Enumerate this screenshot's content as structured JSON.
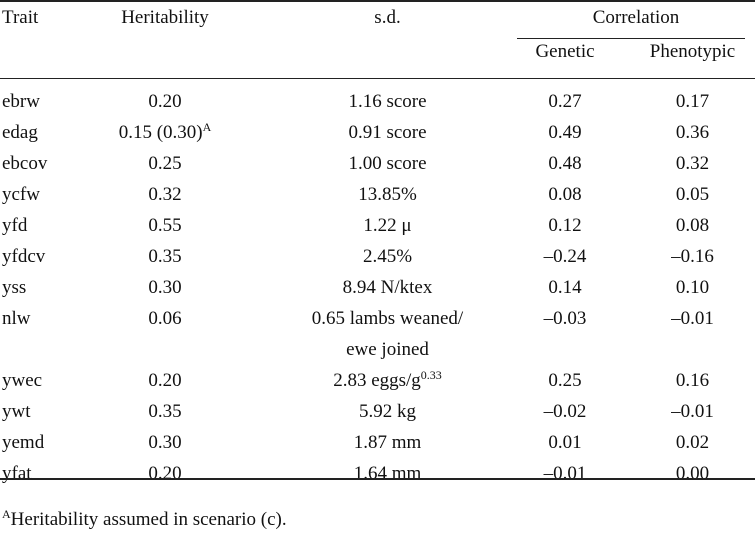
{
  "headers": {
    "trait": "Trait",
    "heritability": "Heritability",
    "sd": "s.d.",
    "correlation": "Correlation",
    "genetic": "Genetic",
    "phenotypic": "Phenotypic"
  },
  "rows": [
    {
      "trait": "ebrw",
      "her": "0.20",
      "her_sup": "",
      "sd": "1.16 score",
      "sd_sup": "",
      "sd2": "",
      "gen": "0.27",
      "phen": "0.17"
    },
    {
      "trait": "edag",
      "her": "0.15 (0.30)",
      "her_sup": "A",
      "sd": "0.91 score",
      "sd_sup": "",
      "sd2": "",
      "gen": "0.49",
      "phen": "0.36"
    },
    {
      "trait": "ebcov",
      "her": "0.25",
      "her_sup": "",
      "sd": "1.00 score",
      "sd_sup": "",
      "sd2": "",
      "gen": "0.48",
      "phen": "0.32"
    },
    {
      "trait": "ycfw",
      "her": "0.32",
      "her_sup": "",
      "sd": "13.85%",
      "sd_sup": "",
      "sd2": "",
      "gen": "0.08",
      "phen": "0.05"
    },
    {
      "trait": "yfd",
      "her": "0.55",
      "her_sup": "",
      "sd": "1.22 μ",
      "sd_sup": "",
      "sd2": "",
      "gen": "0.12",
      "phen": "0.08"
    },
    {
      "trait": "yfdcv",
      "her": "0.35",
      "her_sup": "",
      "sd": "2.45%",
      "sd_sup": "",
      "sd2": "",
      "gen": "–0.24",
      "phen": "–0.16"
    },
    {
      "trait": "yss",
      "her": "0.30",
      "her_sup": "",
      "sd": "8.94 N/ktex",
      "sd_sup": "",
      "sd2": "",
      "gen": "0.14",
      "phen": "0.10"
    },
    {
      "trait": "nlw",
      "her": "0.06",
      "her_sup": "",
      "sd": "0.65 lambs weaned/",
      "sd_sup": "",
      "sd2": "ewe joined",
      "gen": "–0.03",
      "phen": "–0.01"
    },
    {
      "trait": "ywec",
      "her": "0.20",
      "her_sup": "",
      "sd": "2.83 eggs/g",
      "sd_sup": "0.33",
      "sd2": "",
      "gen": "0.25",
      "phen": "0.16"
    },
    {
      "trait": "ywt",
      "her": "0.35",
      "her_sup": "",
      "sd": "5.92 kg",
      "sd_sup": "",
      "sd2": "",
      "gen": "–0.02",
      "phen": "–0.01"
    },
    {
      "trait": "yemd",
      "her": "0.30",
      "her_sup": "",
      "sd": "1.87 mm",
      "sd_sup": "",
      "sd2": "",
      "gen": "0.01",
      "phen": "0.02"
    },
    {
      "trait": "yfat",
      "her": "0.20",
      "her_sup": "",
      "sd": "1.64 mm",
      "sd_sup": "",
      "sd2": "",
      "gen": "–0.01",
      "phen": "0.00"
    }
  ],
  "footnote": {
    "marker": "A",
    "text": "Heritability assumed in scenario (c)."
  }
}
